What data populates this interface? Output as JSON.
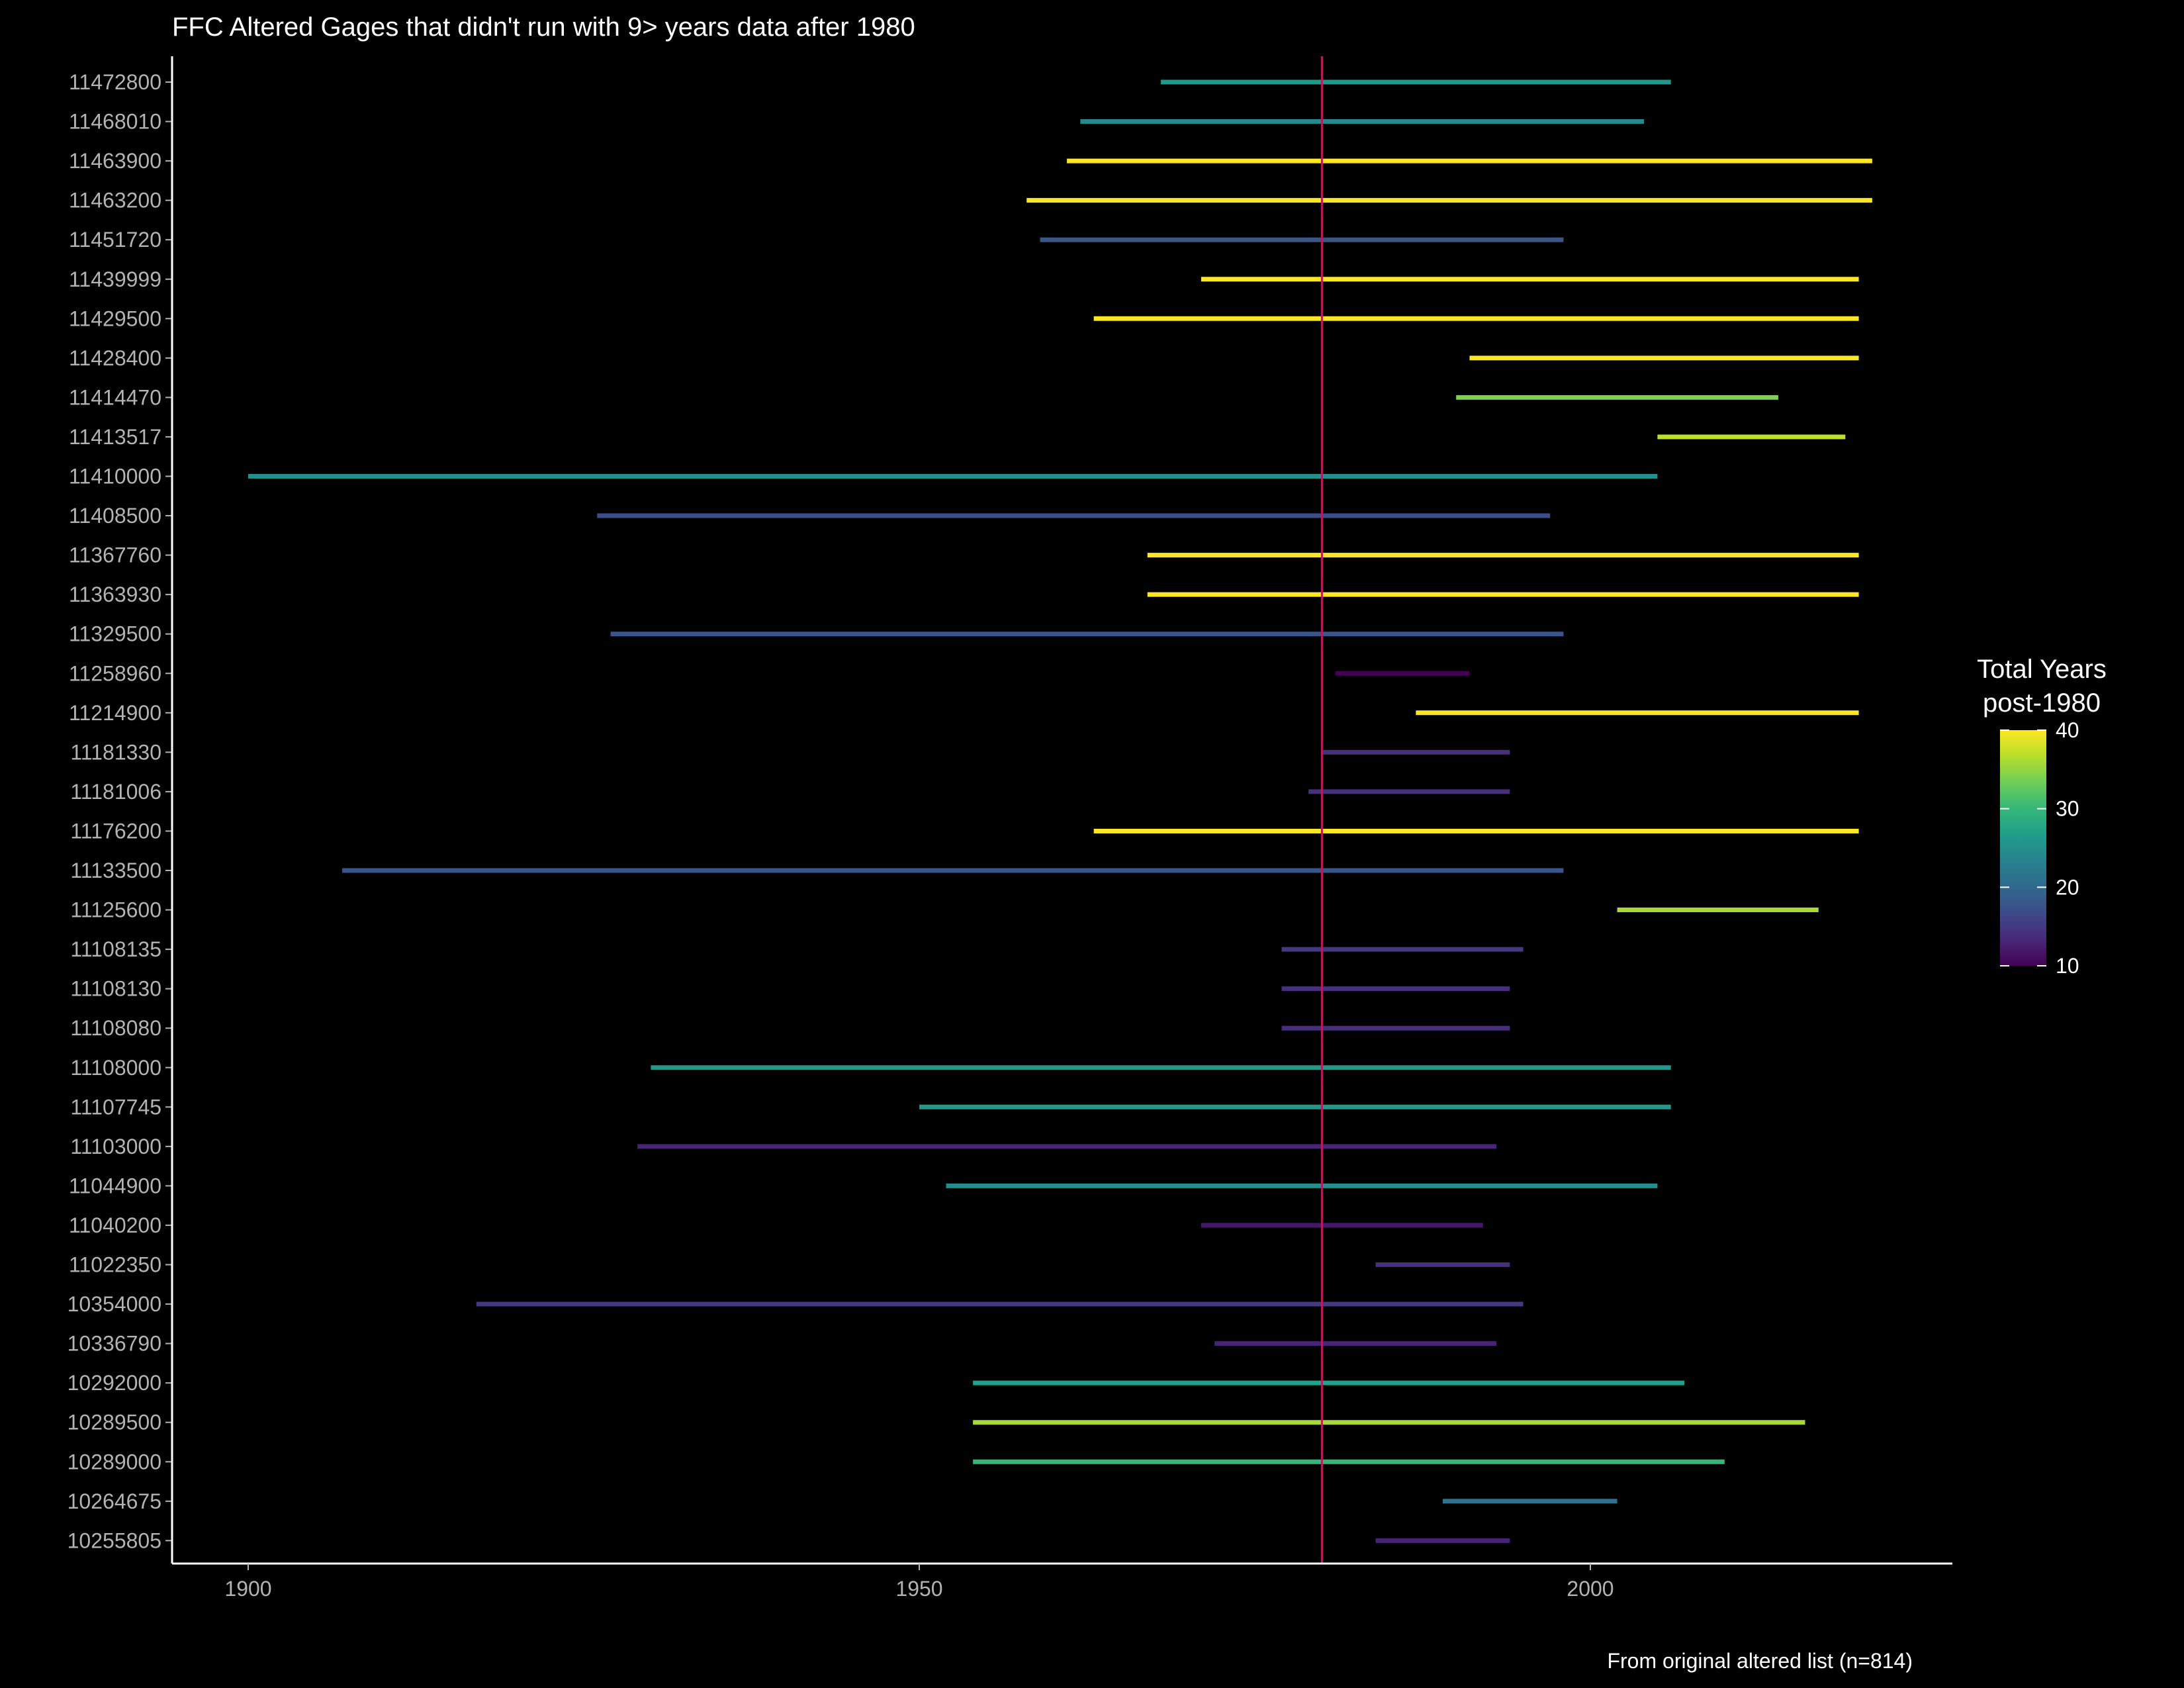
{
  "chart_data": {
    "type": "range_bar",
    "title": "FFC Altered Gages that didn't run with 9> years data after 1980",
    "caption": "From original altered list (n=814)",
    "xlabel": "",
    "ylabel": "",
    "xlim": [
      1889,
      2027
    ],
    "x_ticks": [
      1900,
      1950,
      2000
    ],
    "reference_line": {
      "x": 1980,
      "color": "#c2185b"
    },
    "legend": {
      "title_line1": "Total Years",
      "title_line2": "post-1980",
      "min": 10,
      "max": 40,
      "ticks": [
        10,
        20,
        30,
        40
      ],
      "position": "right"
    },
    "colormap": "viridis",
    "grid": false,
    "gages": [
      {
        "id": "11472800",
        "start": 1968,
        "end": 2006,
        "years": 26
      },
      {
        "id": "11468010",
        "start": 1962,
        "end": 2004,
        "years": 24
      },
      {
        "id": "11463900",
        "start": 1961,
        "end": 2021,
        "years": 41
      },
      {
        "id": "11463200",
        "start": 1958,
        "end": 2021,
        "years": 41
      },
      {
        "id": "11451720",
        "start": 1959,
        "end": 1998,
        "years": 18
      },
      {
        "id": "11439999",
        "start": 1971,
        "end": 2020,
        "years": 40
      },
      {
        "id": "11429500",
        "start": 1963,
        "end": 2020,
        "years": 40
      },
      {
        "id": "11428400",
        "start": 1991,
        "end": 2020,
        "years": 40
      },
      {
        "id": "11414470",
        "start": 1990,
        "end": 2014,
        "years": 34
      },
      {
        "id": "11413517",
        "start": 2005,
        "end": 2019,
        "years": 37
      },
      {
        "id": "11410000",
        "start": 1900,
        "end": 2005,
        "years": 25
      },
      {
        "id": "11408500",
        "start": 1926,
        "end": 1997,
        "years": 17
      },
      {
        "id": "11367760",
        "start": 1967,
        "end": 2020,
        "years": 40
      },
      {
        "id": "11363930",
        "start": 1967,
        "end": 2020,
        "years": 40
      },
      {
        "id": "11329500",
        "start": 1927,
        "end": 1998,
        "years": 18
      },
      {
        "id": "11258960",
        "start": 1981,
        "end": 1991,
        "years": 10
      },
      {
        "id": "11214900",
        "start": 1987,
        "end": 2020,
        "years": 40
      },
      {
        "id": "11181330",
        "start": 1980,
        "end": 1994,
        "years": 14
      },
      {
        "id": "11181006",
        "start": 1979,
        "end": 1994,
        "years": 14
      },
      {
        "id": "11176200",
        "start": 1963,
        "end": 2020,
        "years": 40
      },
      {
        "id": "11133500",
        "start": 1907,
        "end": 1998,
        "years": 18
      },
      {
        "id": "11125600",
        "start": 2002,
        "end": 2017,
        "years": 36
      },
      {
        "id": "11108135",
        "start": 1977,
        "end": 1995,
        "years": 15
      },
      {
        "id": "11108130",
        "start": 1977,
        "end": 1994,
        "years": 14
      },
      {
        "id": "11108080",
        "start": 1977,
        "end": 1994,
        "years": 14
      },
      {
        "id": "11108000",
        "start": 1930,
        "end": 2006,
        "years": 26
      },
      {
        "id": "11107745",
        "start": 1950,
        "end": 2006,
        "years": 26
      },
      {
        "id": "11103000",
        "start": 1929,
        "end": 1993,
        "years": 13
      },
      {
        "id": "11044900",
        "start": 1952,
        "end": 2005,
        "years": 25
      },
      {
        "id": "11040200",
        "start": 1971,
        "end": 1992,
        "years": 12
      },
      {
        "id": "11022350",
        "start": 1984,
        "end": 1994,
        "years": 14
      },
      {
        "id": "10354000",
        "start": 1917,
        "end": 1995,
        "years": 15
      },
      {
        "id": "10336790",
        "start": 1972,
        "end": 1993,
        "years": 13
      },
      {
        "id": "10292000",
        "start": 1954,
        "end": 2007,
        "years": 27
      },
      {
        "id": "10289500",
        "start": 1954,
        "end": 2016,
        "years": 36
      },
      {
        "id": "10289000",
        "start": 1954,
        "end": 2010,
        "years": 30
      },
      {
        "id": "10264675",
        "start": 1989,
        "end": 2002,
        "years": 21
      },
      {
        "id": "10255805",
        "start": 1984,
        "end": 1994,
        "years": 13
      }
    ]
  }
}
